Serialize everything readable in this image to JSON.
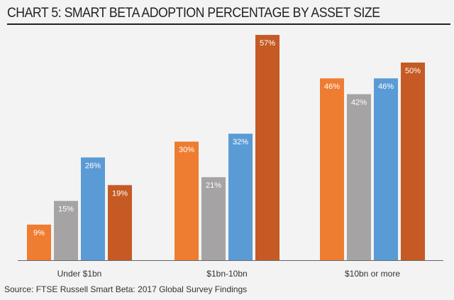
{
  "chart_data": {
    "type": "bar",
    "title": "CHART 5: SMART BETA ADOPTION PERCENTAGE BY ASSET SIZE",
    "source": "Source: FTSE Russell Smart Beta: 2017 Global Survey Findings",
    "categories": [
      "Under $1bn",
      "$1bn-10bn",
      "$10bn or more"
    ],
    "series": [
      {
        "values": [
          9,
          30,
          46
        ],
        "color": "#EE7D31"
      },
      {
        "values": [
          15,
          21,
          42
        ],
        "color": "#A5A3A4"
      },
      {
        "values": [
          26,
          32,
          46
        ],
        "color": "#5B9BD5"
      },
      {
        "values": [
          19,
          57,
          50
        ],
        "color": "#C55A24"
      }
    ],
    "ylim": [
      0,
      60
    ],
    "grid": false,
    "legend": "none",
    "value_suffix": "%"
  }
}
